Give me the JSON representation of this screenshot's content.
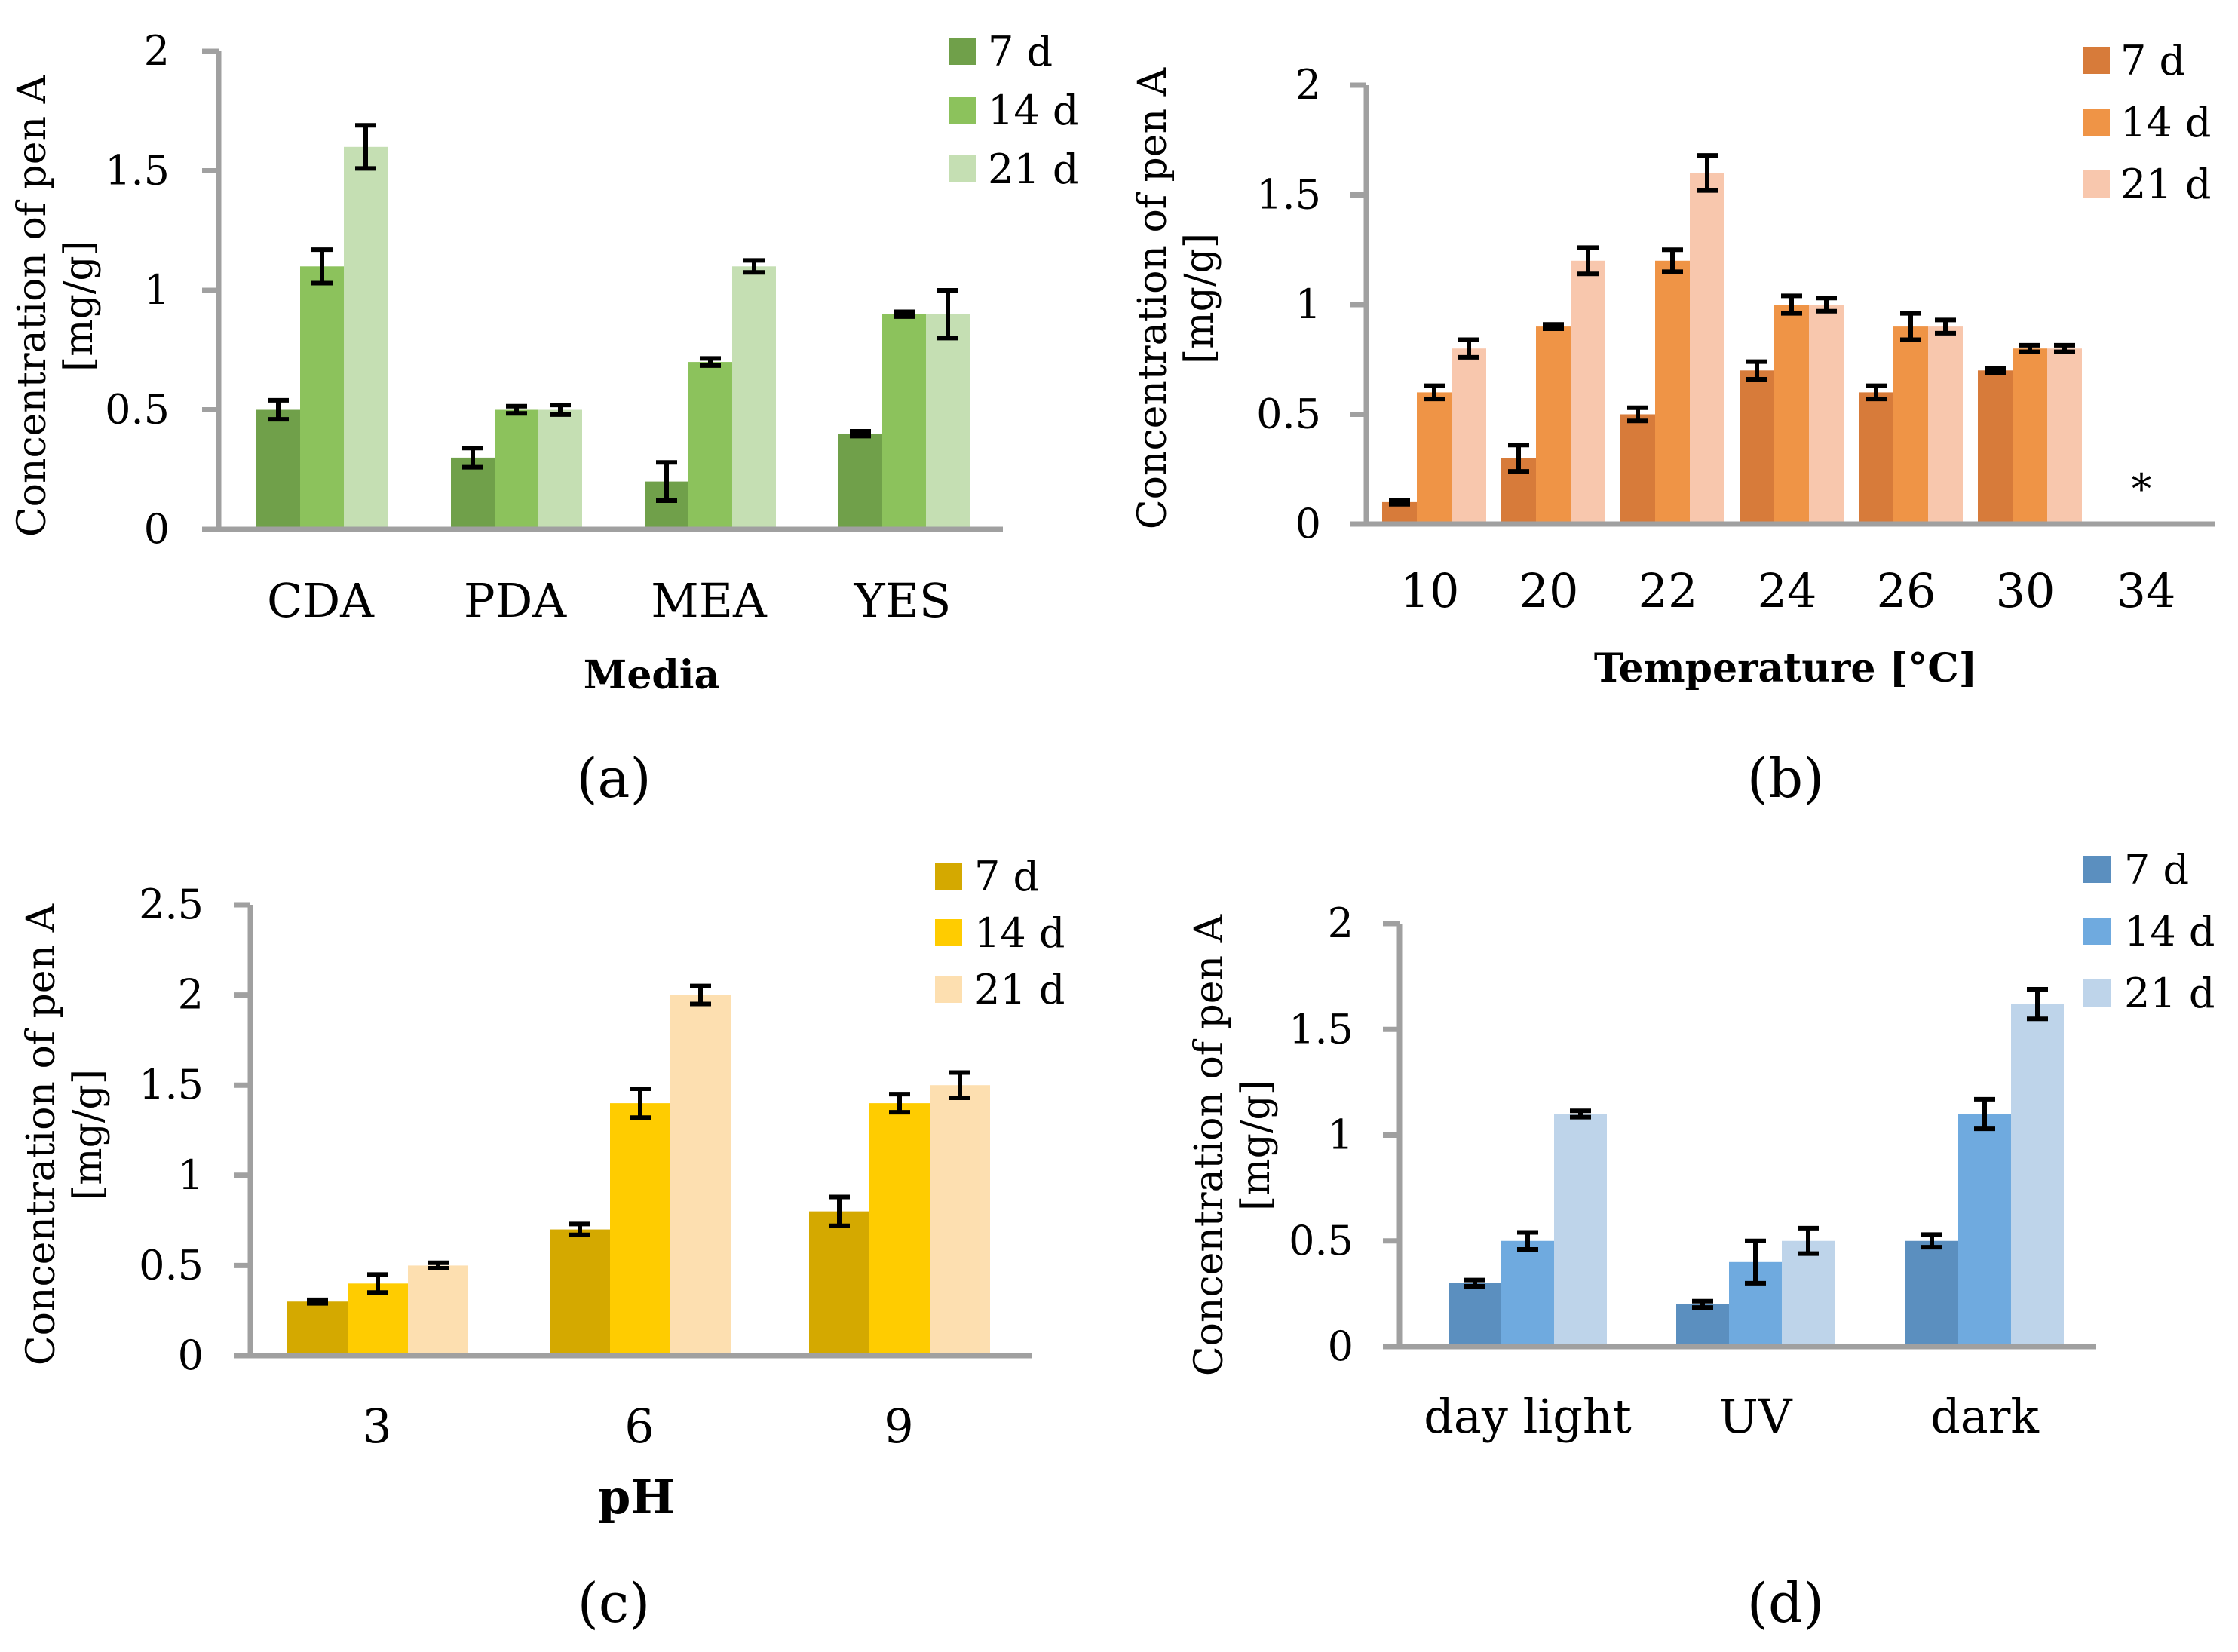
{
  "figure": {
    "panels": [
      {
        "id": "a",
        "label": "(a)"
      },
      {
        "id": "b",
        "label": "(b)"
      },
      {
        "id": "c",
        "label": "(c)"
      },
      {
        "id": "d",
        "label": "(d)"
      }
    ]
  },
  "chart_data": [
    {
      "type": "bar",
      "panel": "(a)",
      "xlabel": "Media",
      "ylabel": [
        "Concentration of pen A",
        "[mg/g]"
      ],
      "ylim": [
        0,
        2
      ],
      "yticks": [
        "0",
        "0.5",
        "1",
        "1.5",
        "2"
      ],
      "categories": [
        "CDA",
        "PDA",
        "MEA",
        "YES"
      ],
      "legend_position": "top-right",
      "series": [
        {
          "name": "7 d",
          "color": "#70a04a",
          "values": [
            0.5,
            0.3,
            0.2,
            0.4
          ],
          "errors": [
            0.04,
            0.04,
            0.08,
            0.01
          ]
        },
        {
          "name": "14 d",
          "color": "#8cc25c",
          "values": [
            1.1,
            0.5,
            0.7,
            0.9
          ],
          "errors": [
            0.07,
            0.015,
            0.015,
            0.01
          ]
        },
        {
          "name": "21 d",
          "color": "#c5dfb3",
          "values": [
            1.6,
            0.5,
            1.1,
            0.9
          ],
          "errors": [
            0.09,
            0.02,
            0.025,
            0.1
          ]
        }
      ]
    },
    {
      "type": "bar",
      "panel": "(b)",
      "xlabel": "Temperature [°C]",
      "ylabel": [
        "Concentration of pen A",
        "[mg/g]"
      ],
      "ylim": [
        0,
        2
      ],
      "yticks": [
        "0",
        "0.5",
        "1",
        "1.5",
        "2"
      ],
      "categories": [
        "10",
        "20",
        "22",
        "24",
        "26",
        "30",
        "34"
      ],
      "legend_position": "top-right",
      "annotations": [
        {
          "category": "34",
          "text": "*"
        }
      ],
      "series": [
        {
          "name": "7 d",
          "color": "#d77b3a",
          "values": [
            0.1,
            0.3,
            0.5,
            0.7,
            0.6,
            0.7,
            0
          ],
          "errors": [
            0.01,
            0.06,
            0.03,
            0.04,
            0.03,
            0.01,
            0
          ]
        },
        {
          "name": "14 d",
          "color": "#ef9446",
          "values": [
            0.6,
            0.9,
            1.2,
            1.0,
            0.9,
            0.8,
            0
          ],
          "errors": [
            0.03,
            0.01,
            0.05,
            0.04,
            0.06,
            0.015,
            0
          ]
        },
        {
          "name": "21 d",
          "color": "#f8c7ad",
          "values": [
            0.8,
            1.2,
            1.6,
            1.0,
            0.9,
            0.8,
            0
          ],
          "errors": [
            0.04,
            0.06,
            0.08,
            0.03,
            0.03,
            0.015,
            0
          ]
        }
      ]
    },
    {
      "type": "bar",
      "panel": "(c)",
      "xlabel": "pH",
      "ylabel": [
        "Concentration of pen A",
        "[mg/g]"
      ],
      "ylim": [
        0,
        2.5
      ],
      "yticks": [
        "0",
        "0.5",
        "1",
        "1.5",
        "2",
        "2.5"
      ],
      "categories": [
        "3",
        "6",
        "9"
      ],
      "legend_position": "top-right",
      "series": [
        {
          "name": "7 d",
          "color": "#d4a900",
          "values": [
            0.3,
            0.7,
            0.8
          ],
          "errors": [
            0.01,
            0.03,
            0.08
          ]
        },
        {
          "name": "14 d",
          "color": "#ffcc00",
          "values": [
            0.4,
            1.4,
            1.4
          ],
          "errors": [
            0.05,
            0.08,
            0.05
          ]
        },
        {
          "name": "21 d",
          "color": "#fddfb0",
          "values": [
            0.5,
            2.0,
            1.5
          ],
          "errors": [
            0.015,
            0.05,
            0.07
          ]
        }
      ]
    },
    {
      "type": "bar",
      "panel": "(d)",
      "xlabel": "",
      "ylabel": [
        "Concentration of pen A",
        "[mg/g]"
      ],
      "ylim": [
        0,
        2
      ],
      "yticks": [
        "0",
        "0.5",
        "1",
        "1.5",
        "2"
      ],
      "categories": [
        "day light",
        "UV",
        "dark"
      ],
      "legend_position": "top-right",
      "series": [
        {
          "name": "7 d",
          "color": "#5b8fbf",
          "values": [
            0.3,
            0.2,
            0.5
          ],
          "errors": [
            0.015,
            0.015,
            0.03
          ]
        },
        {
          "name": "14 d",
          "color": "#6faadf",
          "values": [
            0.5,
            0.4,
            1.1
          ],
          "errors": [
            0.04,
            0.1,
            0.07
          ]
        },
        {
          "name": "21 d",
          "color": "#bed4ea",
          "values": [
            1.1,
            0.5,
            1.62
          ],
          "errors": [
            0.015,
            0.06,
            0.07
          ]
        }
      ]
    }
  ]
}
